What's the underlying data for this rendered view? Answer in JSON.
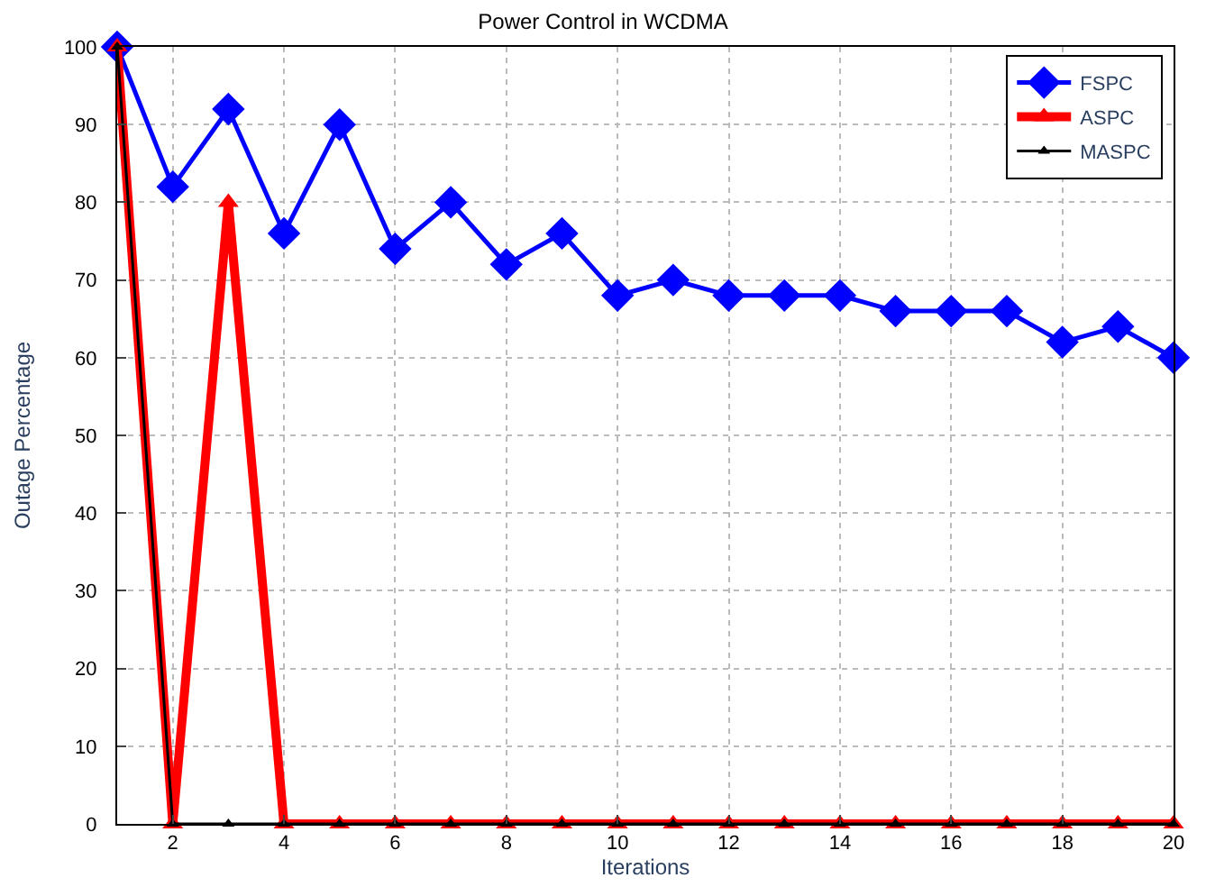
{
  "chart_data": {
    "type": "line",
    "title": "Power Control in WCDMA",
    "xlabel": "Iterations",
    "ylabel": "Outage Percentage",
    "x": [
      1,
      2,
      3,
      4,
      5,
      6,
      7,
      8,
      9,
      10,
      11,
      12,
      13,
      14,
      15,
      16,
      17,
      18,
      19,
      20
    ],
    "series": [
      {
        "name": "FSPC",
        "color": "#0000ff",
        "marker": "diamond",
        "values": [
          100,
          82,
          92,
          76,
          90,
          74,
          80,
          72,
          76,
          68,
          70,
          68,
          68,
          68,
          66,
          66,
          66,
          62,
          64,
          60
        ]
      },
      {
        "name": "ASPC",
        "color": "#ff0000",
        "marker": "triangle",
        "values": [
          100,
          0,
          80,
          0,
          0,
          0,
          0,
          0,
          0,
          0,
          0,
          0,
          0,
          0,
          0,
          0,
          0,
          0,
          0,
          0
        ]
      },
      {
        "name": "MASPC",
        "color": "#000000",
        "marker": "triangle",
        "values": [
          100,
          0,
          0,
          0,
          0,
          0,
          0,
          0,
          0,
          0,
          0,
          0,
          0,
          0,
          0,
          0,
          0,
          0,
          0,
          0
        ]
      }
    ],
    "xlim": [
      1,
      20
    ],
    "xticks": [
      2,
      4,
      6,
      8,
      10,
      12,
      14,
      16,
      18,
      20
    ],
    "ylim": [
      0,
      100
    ],
    "yticks": [
      0,
      10,
      20,
      30,
      40,
      50,
      60,
      70,
      80,
      90,
      100
    ],
    "grid": true,
    "legend": "top right",
    "line_style": "solid"
  }
}
